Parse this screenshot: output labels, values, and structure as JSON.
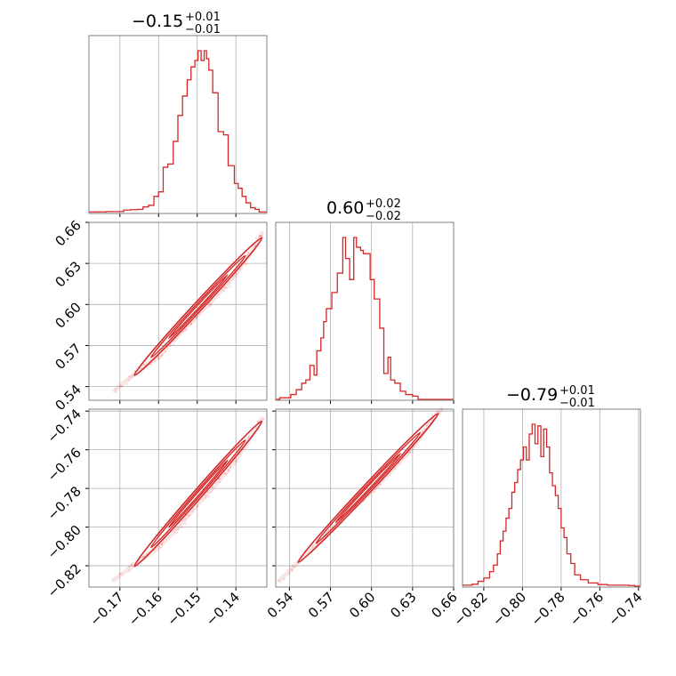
{
  "colors": {
    "accent": "#d62728",
    "grid": "#b0b0b0",
    "frame": "#808080"
  },
  "titles": [
    {
      "value": "−0.15",
      "plus": "+0.01",
      "minus": "−0.01"
    },
    {
      "value": "0.60",
      "plus": "+0.02",
      "minus": "−0.02"
    },
    {
      "value": "−0.79",
      "plus": "+0.01",
      "minus": "−0.01"
    }
  ],
  "chart_data": {
    "type": "corner",
    "grid": true,
    "parameters": [
      {
        "range": [
          -0.178,
          -0.132
        ],
        "ticks": [
          -0.17,
          -0.16,
          -0.15,
          -0.14
        ],
        "tick_labels": [
          "−0.17",
          "−0.16",
          "−0.15",
          "−0.14"
        ]
      },
      {
        "range": [
          0.53,
          0.66
        ],
        "ticks": [
          0.54,
          0.57,
          0.6,
          0.63,
          0.66
        ],
        "tick_labels": [
          "0.54",
          "0.57",
          "0.60",
          "0.63",
          "0.66"
        ]
      },
      {
        "range": [
          -0.831,
          -0.739
        ],
        "ticks": [
          -0.82,
          -0.8,
          -0.78,
          -0.76,
          -0.74
        ],
        "tick_labels": [
          "−0.82",
          "−0.80",
          "−0.78",
          "−0.76",
          "−0.74"
        ]
      }
    ],
    "marginal_histograms": [
      {
        "parameter": 0,
        "bins": [
          [
            -0.178,
            0.004
          ],
          [
            -0.1735,
            0.006
          ],
          [
            -0.169,
            0.016
          ],
          [
            -0.1672,
            0.018
          ],
          [
            -0.1655,
            0.02
          ],
          [
            -0.164,
            0.035
          ],
          [
            -0.1626,
            0.045
          ],
          [
            -0.1612,
            0.1
          ],
          [
            -0.16,
            0.128
          ],
          [
            -0.1588,
            0.28
          ],
          [
            -0.1576,
            0.3
          ],
          [
            -0.1562,
            0.44
          ],
          [
            -0.155,
            0.6
          ],
          [
            -0.1538,
            0.72
          ],
          [
            -0.1526,
            0.82
          ],
          [
            -0.1516,
            0.9
          ],
          [
            -0.1506,
            0.94
          ],
          [
            -0.1498,
            1.0
          ],
          [
            -0.149,
            0.94
          ],
          [
            -0.1482,
            1.0
          ],
          [
            -0.1476,
            0.95
          ],
          [
            -0.147,
            0.88
          ],
          [
            -0.146,
            0.74
          ],
          [
            -0.1446,
            0.5
          ],
          [
            -0.1432,
            0.48
          ],
          [
            -0.142,
            0.29
          ],
          [
            -0.1404,
            0.18
          ],
          [
            -0.1394,
            0.15
          ],
          [
            -0.1384,
            0.1
          ],
          [
            -0.1374,
            0.06
          ],
          [
            -0.1362,
            0.03
          ],
          [
            -0.135,
            0.02
          ],
          [
            -0.134,
            0.004
          ]
        ]
      },
      {
        "parameter": 1,
        "bins": [
          [
            0.53,
            0.0
          ],
          [
            0.533,
            0.01
          ],
          [
            0.541,
            0.03
          ],
          [
            0.545,
            0.06
          ],
          [
            0.549,
            0.1
          ],
          [
            0.552,
            0.12
          ],
          [
            0.555,
            0.21
          ],
          [
            0.558,
            0.15
          ],
          [
            0.56,
            0.3
          ],
          [
            0.563,
            0.38
          ],
          [
            0.565,
            0.48
          ],
          [
            0.567,
            0.56
          ],
          [
            0.571,
            0.66
          ],
          [
            0.575,
            0.78
          ],
          [
            0.579,
            1.0
          ],
          [
            0.581,
            0.87
          ],
          [
            0.584,
            0.74
          ],
          [
            0.587,
            1.0
          ],
          [
            0.589,
            0.94
          ],
          [
            0.592,
            0.92
          ],
          [
            0.594,
            0.9
          ],
          [
            0.599,
            0.74
          ],
          [
            0.602,
            0.62
          ],
          [
            0.606,
            0.44
          ],
          [
            0.609,
            0.16
          ],
          [
            0.612,
            0.26
          ],
          [
            0.614,
            0.12
          ],
          [
            0.617,
            0.1
          ],
          [
            0.621,
            0.05
          ],
          [
            0.625,
            0.03
          ],
          [
            0.63,
            0.02
          ],
          [
            0.634,
            0.0
          ],
          [
            0.66,
            0.0
          ]
        ]
      },
      {
        "parameter": 2,
        "bins": [
          [
            -0.831,
            0.006
          ],
          [
            -0.826,
            0.012
          ],
          [
            -0.823,
            0.03
          ],
          [
            -0.82,
            0.05
          ],
          [
            -0.817,
            0.09
          ],
          [
            -0.815,
            0.13
          ],
          [
            -0.813,
            0.2
          ],
          [
            -0.8115,
            0.28
          ],
          [
            -0.81,
            0.34
          ],
          [
            -0.8085,
            0.42
          ],
          [
            -0.807,
            0.48
          ],
          [
            -0.8055,
            0.58
          ],
          [
            -0.804,
            0.64
          ],
          [
            -0.8025,
            0.72
          ],
          [
            -0.801,
            0.78
          ],
          [
            -0.7995,
            0.86
          ],
          [
            -0.798,
            0.78
          ],
          [
            -0.7965,
            0.94
          ],
          [
            -0.795,
            1.0
          ],
          [
            -0.7935,
            0.88
          ],
          [
            -0.792,
            0.99
          ],
          [
            -0.7905,
            0.8
          ],
          [
            -0.789,
            0.97
          ],
          [
            -0.7875,
            0.86
          ],
          [
            -0.786,
            0.7
          ],
          [
            -0.7845,
            0.62
          ],
          [
            -0.783,
            0.56
          ],
          [
            -0.7815,
            0.48
          ],
          [
            -0.78,
            0.36
          ],
          [
            -0.7785,
            0.3
          ],
          [
            -0.777,
            0.2
          ],
          [
            -0.775,
            0.14
          ],
          [
            -0.773,
            0.07
          ],
          [
            -0.77,
            0.04
          ],
          [
            -0.766,
            0.02
          ],
          [
            -0.761,
            0.01
          ],
          [
            -0.756,
            0.006
          ],
          [
            -0.745,
            0.004
          ],
          [
            -0.742,
            0.0
          ]
        ]
      }
    ],
    "joint": [
      {
        "x_param": 0,
        "y_param": 1,
        "ridge": [
          [
            -0.1714,
            0.537
          ],
          [
            -0.165,
            0.552
          ],
          [
            -0.16,
            0.562
          ],
          [
            -0.155,
            0.577
          ],
          [
            -0.15,
            0.592
          ],
          [
            -0.145,
            0.606
          ],
          [
            -0.14,
            0.622
          ],
          [
            -0.1345,
            0.645
          ],
          [
            -0.1333,
            0.652
          ]
        ]
      },
      {
        "x_param": 0,
        "y_param": 2,
        "ridge": [
          [
            -0.1716,
            -0.8275
          ],
          [
            -0.165,
            -0.8175
          ],
          [
            -0.16,
            -0.8105
          ],
          [
            -0.155,
            -0.8005
          ],
          [
            -0.15,
            -0.7885
          ],
          [
            -0.145,
            -0.7775
          ],
          [
            -0.14,
            -0.7655
          ],
          [
            -0.1345,
            -0.748
          ],
          [
            -0.1333,
            -0.744
          ]
        ]
      },
      {
        "x_param": 1,
        "y_param": 2,
        "ridge": [
          [
            0.533,
            -0.8275
          ],
          [
            0.55,
            -0.8155
          ],
          [
            0.565,
            -0.8055
          ],
          [
            0.58,
            -0.7945
          ],
          [
            0.6,
            -0.7815
          ],
          [
            0.615,
            -0.7705
          ],
          [
            0.63,
            -0.759
          ],
          [
            0.645,
            -0.744
          ],
          [
            0.651,
            -0.739
          ]
        ]
      }
    ]
  }
}
